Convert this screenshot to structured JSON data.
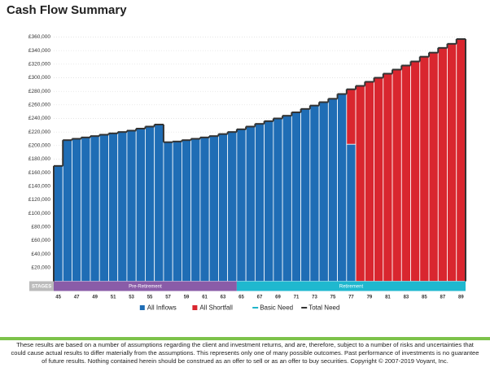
{
  "chart_data": {
    "type": "bar",
    "title": "Cash Flow Summary",
    "x": [
      45,
      46,
      47,
      48,
      49,
      50,
      51,
      52,
      53,
      54,
      55,
      56,
      57,
      58,
      59,
      60,
      61,
      62,
      63,
      64,
      65,
      66,
      67,
      68,
      69,
      70,
      71,
      72,
      73,
      74,
      75,
      76,
      77,
      78,
      79,
      80,
      81,
      82,
      83,
      84,
      85,
      86,
      87,
      88,
      89
    ],
    "xlim": [
      44.5,
      89.5
    ],
    "xticks": [
      45,
      47,
      49,
      51,
      53,
      55,
      57,
      59,
      61,
      63,
      65,
      67,
      69,
      71,
      73,
      75,
      77,
      79,
      81,
      83,
      85,
      87,
      89
    ],
    "ylim": [
      0,
      360000
    ],
    "yticks": [
      {
        "value": 20000,
        "label": "£20,000"
      },
      {
        "value": 40000,
        "label": "£40,000"
      },
      {
        "value": 60000,
        "label": "£60,000"
      },
      {
        "value": 80000,
        "label": "£80,000"
      },
      {
        "value": 100000,
        "label": "£100,000"
      },
      {
        "value": 120000,
        "label": "£120,000"
      },
      {
        "value": 140000,
        "label": "£140,000"
      },
      {
        "value": 160000,
        "label": "£160,000"
      },
      {
        "value": 180000,
        "label": "£180,000"
      },
      {
        "value": 200000,
        "label": "£200,000"
      },
      {
        "value": 220000,
        "label": "£220,000"
      },
      {
        "value": 240000,
        "label": "£240,000"
      },
      {
        "value": 260000,
        "label": "£260,000"
      },
      {
        "value": 280000,
        "label": "£280,000"
      },
      {
        "value": 300000,
        "label": "£300,000"
      },
      {
        "value": 320000,
        "label": "£320,000"
      },
      {
        "value": 340000,
        "label": "£340,000"
      },
      {
        "value": 360000,
        "label": "£360,000"
      }
    ],
    "grid": true,
    "series": [
      {
        "name": "All Inflows",
        "color": "#1f6db5",
        "kind": "bar",
        "values": [
          170000,
          208000,
          210000,
          212000,
          214000,
          216000,
          218000,
          220000,
          222000,
          225000,
          228000,
          231000,
          205000,
          206000,
          208000,
          210000,
          212000,
          214000,
          217000,
          220000,
          224000,
          228000,
          232000,
          236000,
          240000,
          244000,
          249000,
          254000,
          259000,
          264000,
          269000,
          276000,
          202000,
          0,
          0,
          0,
          0,
          0,
          0,
          0,
          0,
          0,
          0,
          0,
          0
        ]
      },
      {
        "name": "All Shortfall",
        "color": "#d9262f",
        "kind": "bar",
        "values": [
          0,
          0,
          0,
          0,
          0,
          0,
          0,
          0,
          0,
          0,
          0,
          0,
          0,
          0,
          0,
          0,
          0,
          0,
          0,
          0,
          0,
          0,
          0,
          0,
          0,
          0,
          0,
          0,
          0,
          0,
          0,
          0,
          81000,
          288000,
          294000,
          300000,
          306000,
          312000,
          318000,
          324000,
          331000,
          337000,
          344000,
          350000,
          357000
        ]
      },
      {
        "name": "Basic Need",
        "color": "#1fb5c9",
        "kind": "step",
        "values": [
          170000,
          208000,
          210000,
          212000,
          214000,
          216000,
          218000,
          220000,
          222000,
          225000,
          228000,
          231000,
          205000,
          206000,
          208000,
          210000,
          212000,
          214000,
          217000,
          220000,
          224000,
          228000,
          232000,
          236000,
          240000,
          244000,
          249000,
          254000,
          259000,
          264000,
          269000,
          276000,
          283000,
          288000,
          294000,
          300000,
          306000,
          312000,
          318000,
          324000,
          331000,
          337000,
          344000,
          350000,
          357000
        ]
      },
      {
        "name": "Total Need",
        "color": "#333333",
        "kind": "step",
        "values": [
          170000,
          208000,
          210000,
          212000,
          214000,
          216000,
          218000,
          220000,
          222000,
          225000,
          228000,
          231000,
          205000,
          206000,
          208000,
          210000,
          212000,
          214000,
          217000,
          220000,
          224000,
          228000,
          232000,
          236000,
          240000,
          244000,
          249000,
          254000,
          259000,
          264000,
          269000,
          276000,
          283000,
          288000,
          294000,
          300000,
          306000,
          312000,
          318000,
          324000,
          331000,
          337000,
          344000,
          350000,
          357000
        ]
      }
    ],
    "stages_label": "STAGES",
    "stages": [
      {
        "label": "Pre-Retirement",
        "start": 45,
        "end": 64,
        "color": "#8a5ca8"
      },
      {
        "label": "Retirement",
        "start": 65,
        "end": 89,
        "color": "#1fb8cf"
      }
    ]
  },
  "footer": "These results are based on a number of assumptions regarding the client and investment returns, and are, therefore, subject to a number of risks and uncertainties that could cause actual results to differ materially from the assumptions. This represents only one of many possible outcomes. Past performance of investments is no guarantee of future results. Nothing contained herein should be construed as an offer to sell or as an offer to buy securities. Copyright © 2007-2019 Voyant, Inc."
}
